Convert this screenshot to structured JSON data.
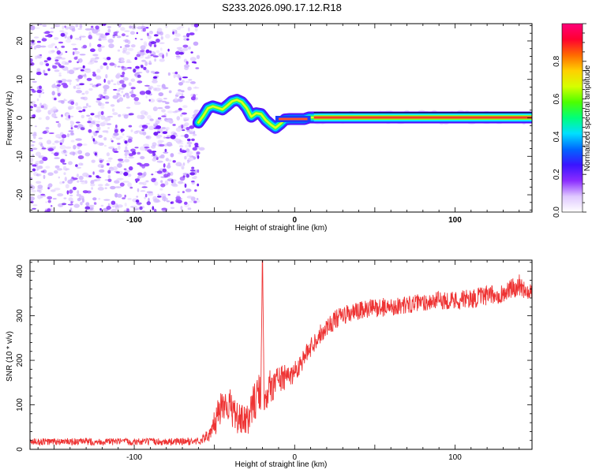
{
  "title": "S233.2026.090.17.12.R18",
  "chart_data": [
    {
      "type": "heatmap",
      "xlabel": "Height of straight line (km)",
      "ylabel": "Frequency (Hz)",
      "xlim": [
        -165,
        148
      ],
      "ylim": [
        -24.5,
        24.5
      ],
      "xticks": [
        -100,
        0,
        100
      ],
      "yticks": [
        -20,
        -10,
        0,
        10,
        20
      ],
      "noise_region_x": [
        -165,
        -60
      ],
      "signal_track": {
        "x": [
          -60,
          -57,
          -54,
          -51,
          -48,
          -45,
          -42,
          -39,
          -36,
          -33,
          -30,
          -27,
          -24,
          -21,
          -18,
          -15,
          -12,
          -9,
          -6,
          -3,
          0,
          3,
          6,
          9,
          12,
          148
        ],
        "hz": [
          -1.2,
          0.5,
          2.5,
          3.0,
          2.6,
          2.2,
          3.2,
          4.3,
          4.7,
          4.1,
          2.6,
          0.3,
          1.2,
          1.0,
          -0.6,
          -1.7,
          -2.6,
          -1.6,
          -0.4,
          -0.3,
          -0.3,
          -0.3,
          -0.3,
          0.1,
          0.1,
          0.1
        ]
      },
      "colorbar": {
        "label": "Normalized spectral amplitude",
        "range": [
          0,
          1
        ],
        "ticks": [
          "0.0",
          "0.2",
          "0.4",
          "0.6",
          "0.8"
        ],
        "colors": [
          "#ffffff",
          "#dfc8ff",
          "#8a2cff",
          "#3a14ff",
          "#0066ff",
          "#00e0ff",
          "#00ff7a",
          "#4cff00",
          "#d6ff00",
          "#ffd000",
          "#ff6a00",
          "#ff0030",
          "#ff007a"
        ]
      }
    },
    {
      "type": "line",
      "xlabel": "Height of straight line (km)",
      "ylabel": "SNR (10 * v/v)",
      "xlim": [
        -165,
        148
      ],
      "ylim": [
        0,
        425
      ],
      "xticks": [
        -100,
        0,
        100
      ],
      "yticks": [
        0,
        100,
        200,
        300,
        400
      ],
      "color": "#ee3333",
      "series": [
        {
          "name": "SNR",
          "x": [
            -165,
            -140,
            -120,
            -100,
            -80,
            -60,
            -52,
            -48,
            -44,
            -40,
            -36,
            -30,
            -25,
            -21,
            -20,
            -19,
            -15,
            -10,
            -5,
            0,
            5,
            10,
            15,
            20,
            25,
            30,
            40,
            50,
            60,
            70,
            80,
            90,
            100,
            110,
            120,
            130,
            140,
            145,
            148
          ],
          "mean": [
            17,
            17,
            17,
            17,
            17,
            18,
            35,
            80,
            110,
            95,
            70,
            60,
            110,
            130,
            420,
            130,
            140,
            160,
            160,
            175,
            200,
            230,
            255,
            275,
            290,
            300,
            310,
            318,
            320,
            325,
            330,
            335,
            335,
            338,
            345,
            350,
            370,
            355,
            360
          ],
          "noise_amp": [
            8,
            8,
            8,
            8,
            8,
            9,
            15,
            45,
            45,
            40,
            35,
            35,
            45,
            45,
            10,
            50,
            40,
            35,
            28,
            25,
            22,
            22,
            22,
            22,
            22,
            22,
            22,
            22,
            20,
            20,
            20,
            20,
            22,
            22,
            22,
            22,
            24,
            22,
            20
          ]
        }
      ]
    }
  ]
}
